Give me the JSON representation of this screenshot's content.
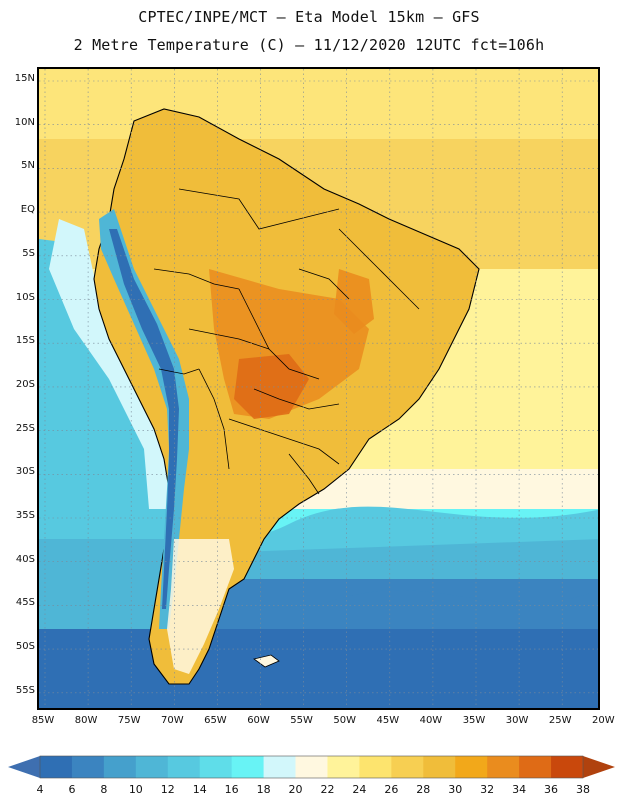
{
  "header": {
    "title_line1": "CPTEC/INPE/MCT –  Eta Model 15km – GFS",
    "title_line2": "2 Metre Temperature (C) – 11/12/2020 12UTC fct=106h"
  },
  "map": {
    "region": "South America",
    "lat_labels": [
      {
        "lat": 15,
        "label": "15N"
      },
      {
        "lat": 10,
        "label": "10N"
      },
      {
        "lat": 5,
        "label": "5N"
      },
      {
        "lat": 0,
        "label": "EQ"
      },
      {
        "lat": -5,
        "label": "5S"
      },
      {
        "lat": -10,
        "label": "10S"
      },
      {
        "lat": -15,
        "label": "15S"
      },
      {
        "lat": -20,
        "label": "20S"
      },
      {
        "lat": -25,
        "label": "25S"
      },
      {
        "lat": -30,
        "label": "30S"
      },
      {
        "lat": -35,
        "label": "35S"
      },
      {
        "lat": -40,
        "label": "40S"
      },
      {
        "lat": -45,
        "label": "45S"
      },
      {
        "lat": -50,
        "label": "50S"
      },
      {
        "lat": -55,
        "label": "55S"
      }
    ],
    "lon_labels": [
      {
        "lon": -85,
        "label": "85W"
      },
      {
        "lon": -80,
        "label": "80W"
      },
      {
        "lon": -75,
        "label": "75W"
      },
      {
        "lon": -70,
        "label": "70W"
      },
      {
        "lon": -65,
        "label": "65W"
      },
      {
        "lon": -60,
        "label": "60W"
      },
      {
        "lon": -55,
        "label": "55W"
      },
      {
        "lon": -50,
        "label": "50W"
      },
      {
        "lon": -45,
        "label": "45W"
      },
      {
        "lon": -40,
        "label": "40W"
      },
      {
        "lon": -35,
        "label": "35W"
      },
      {
        "lon": -30,
        "label": "30W"
      },
      {
        "lon": -25,
        "label": "25W"
      },
      {
        "lon": -20,
        "label": "20W"
      }
    ]
  },
  "colorbar": {
    "unit": "C",
    "ticks": [
      "4",
      "6",
      "8",
      "10",
      "12",
      "14",
      "16",
      "18",
      "20",
      "22",
      "24",
      "26",
      "28",
      "30",
      "32",
      "34",
      "36",
      "38"
    ],
    "colors": {
      "below_min": "#3e6fb0",
      "bins": [
        "#2f6fb4",
        "#3b84c0",
        "#45a0cc",
        "#4fb6d6",
        "#57c9e0",
        "#5fdde9",
        "#68f3f5",
        "#d2f7fb",
        "#fff8e0",
        "#fff39a",
        "#fde46e",
        "#f7cf52",
        "#f0bd3a",
        "#f2a81a",
        "#ea8c1e",
        "#df6b16",
        "#c9480c"
      ],
      "above_max": "#b0420e"
    }
  },
  "fields": {
    "ocean_bands": [
      {
        "name": "equatorial-atlantic",
        "temp_c": 27,
        "color": "#fde57a"
      },
      {
        "name": "tropical-atlantic",
        "temp_c": 26,
        "color": "#f7d35f"
      },
      {
        "name": "south-atlantic-subtropic",
        "temp_c": 23,
        "color": "#fff39a"
      },
      {
        "name": "south-atlantic-transition",
        "temp_c": 21,
        "color": "#fff8e0"
      },
      {
        "name": "south-atlantic-mid",
        "temp_c": 17,
        "color": "#68f3f5"
      },
      {
        "name": "south-atlantic-cool",
        "temp_c": 13,
        "color": "#4fb6d6"
      },
      {
        "name": "southern-ocean",
        "temp_c": 9,
        "color": "#3b84c0"
      },
      {
        "name": "far-southern-ocean",
        "temp_c": 6,
        "color": "#2f6fb4"
      }
    ],
    "land": {
      "base_color": "#f0bd3a",
      "hot_color": "#ea8c1e",
      "hottest_color": "#df6b16",
      "andes_cool_color": "#4fb6d6",
      "andes_cold_color": "#2f6fb4",
      "patagonia_color": "#fff8e0"
    },
    "pacific_coastal": {
      "color": "#d2f7fb"
    },
    "pacific_offshore": {
      "color": "#57c9e0"
    }
  }
}
